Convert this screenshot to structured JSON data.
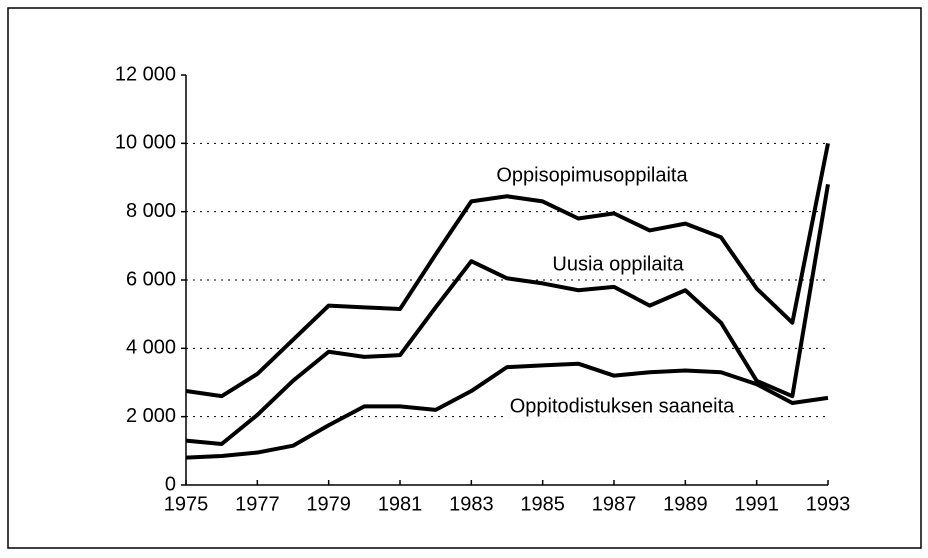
{
  "chart_data": {
    "type": "line",
    "x": [
      1975,
      1976,
      1977,
      1978,
      1979,
      1980,
      1981,
      1982,
      1983,
      1984,
      1985,
      1986,
      1987,
      1988,
      1989,
      1990,
      1991,
      1992,
      1993
    ],
    "series": [
      {
        "name": "Oppisopimusoppilaita",
        "color": "#000000",
        "values": [
          2750,
          2600,
          3250,
          4250,
          5250,
          5200,
          5150,
          6750,
          8300,
          8450,
          8300,
          7800,
          7950,
          7450,
          7650,
          7250,
          5750,
          4750,
          10000
        ]
      },
      {
        "name": "Uusia oppilaita",
        "color": "#000000",
        "values": [
          1300,
          1200,
          2050,
          3050,
          3900,
          3750,
          3800,
          5200,
          6550,
          6050,
          5900,
          5700,
          5800,
          5250,
          5700,
          4750,
          3050,
          2600,
          8800
        ]
      },
      {
        "name": "Oppitodistuksen saaneita",
        "color": "#000000",
        "values": [
          800,
          850,
          950,
          1150,
          1750,
          2300,
          2300,
          2200,
          2750,
          3450,
          3500,
          3550,
          3200,
          3300,
          3350,
          3300,
          2950,
          2400,
          2550
        ]
      }
    ],
    "xlim": [
      1975,
      1993
    ],
    "xticks": [
      1975,
      1977,
      1979,
      1981,
      1983,
      1985,
      1987,
      1989,
      1991,
      1993
    ],
    "ylim": [
      0,
      12000
    ],
    "yticks": [
      0,
      {
        "value": 2000,
        "label": "2 000"
      },
      {
        "value": 4000,
        "label": "4 000"
      },
      {
        "value": 6000,
        "label": "6 000"
      },
      {
        "value": 8000,
        "label": "8 000"
      },
      {
        "value": 10000,
        "label": "10 000"
      },
      {
        "value": 12000,
        "label": "12 000"
      }
    ],
    "grid": true
  }
}
